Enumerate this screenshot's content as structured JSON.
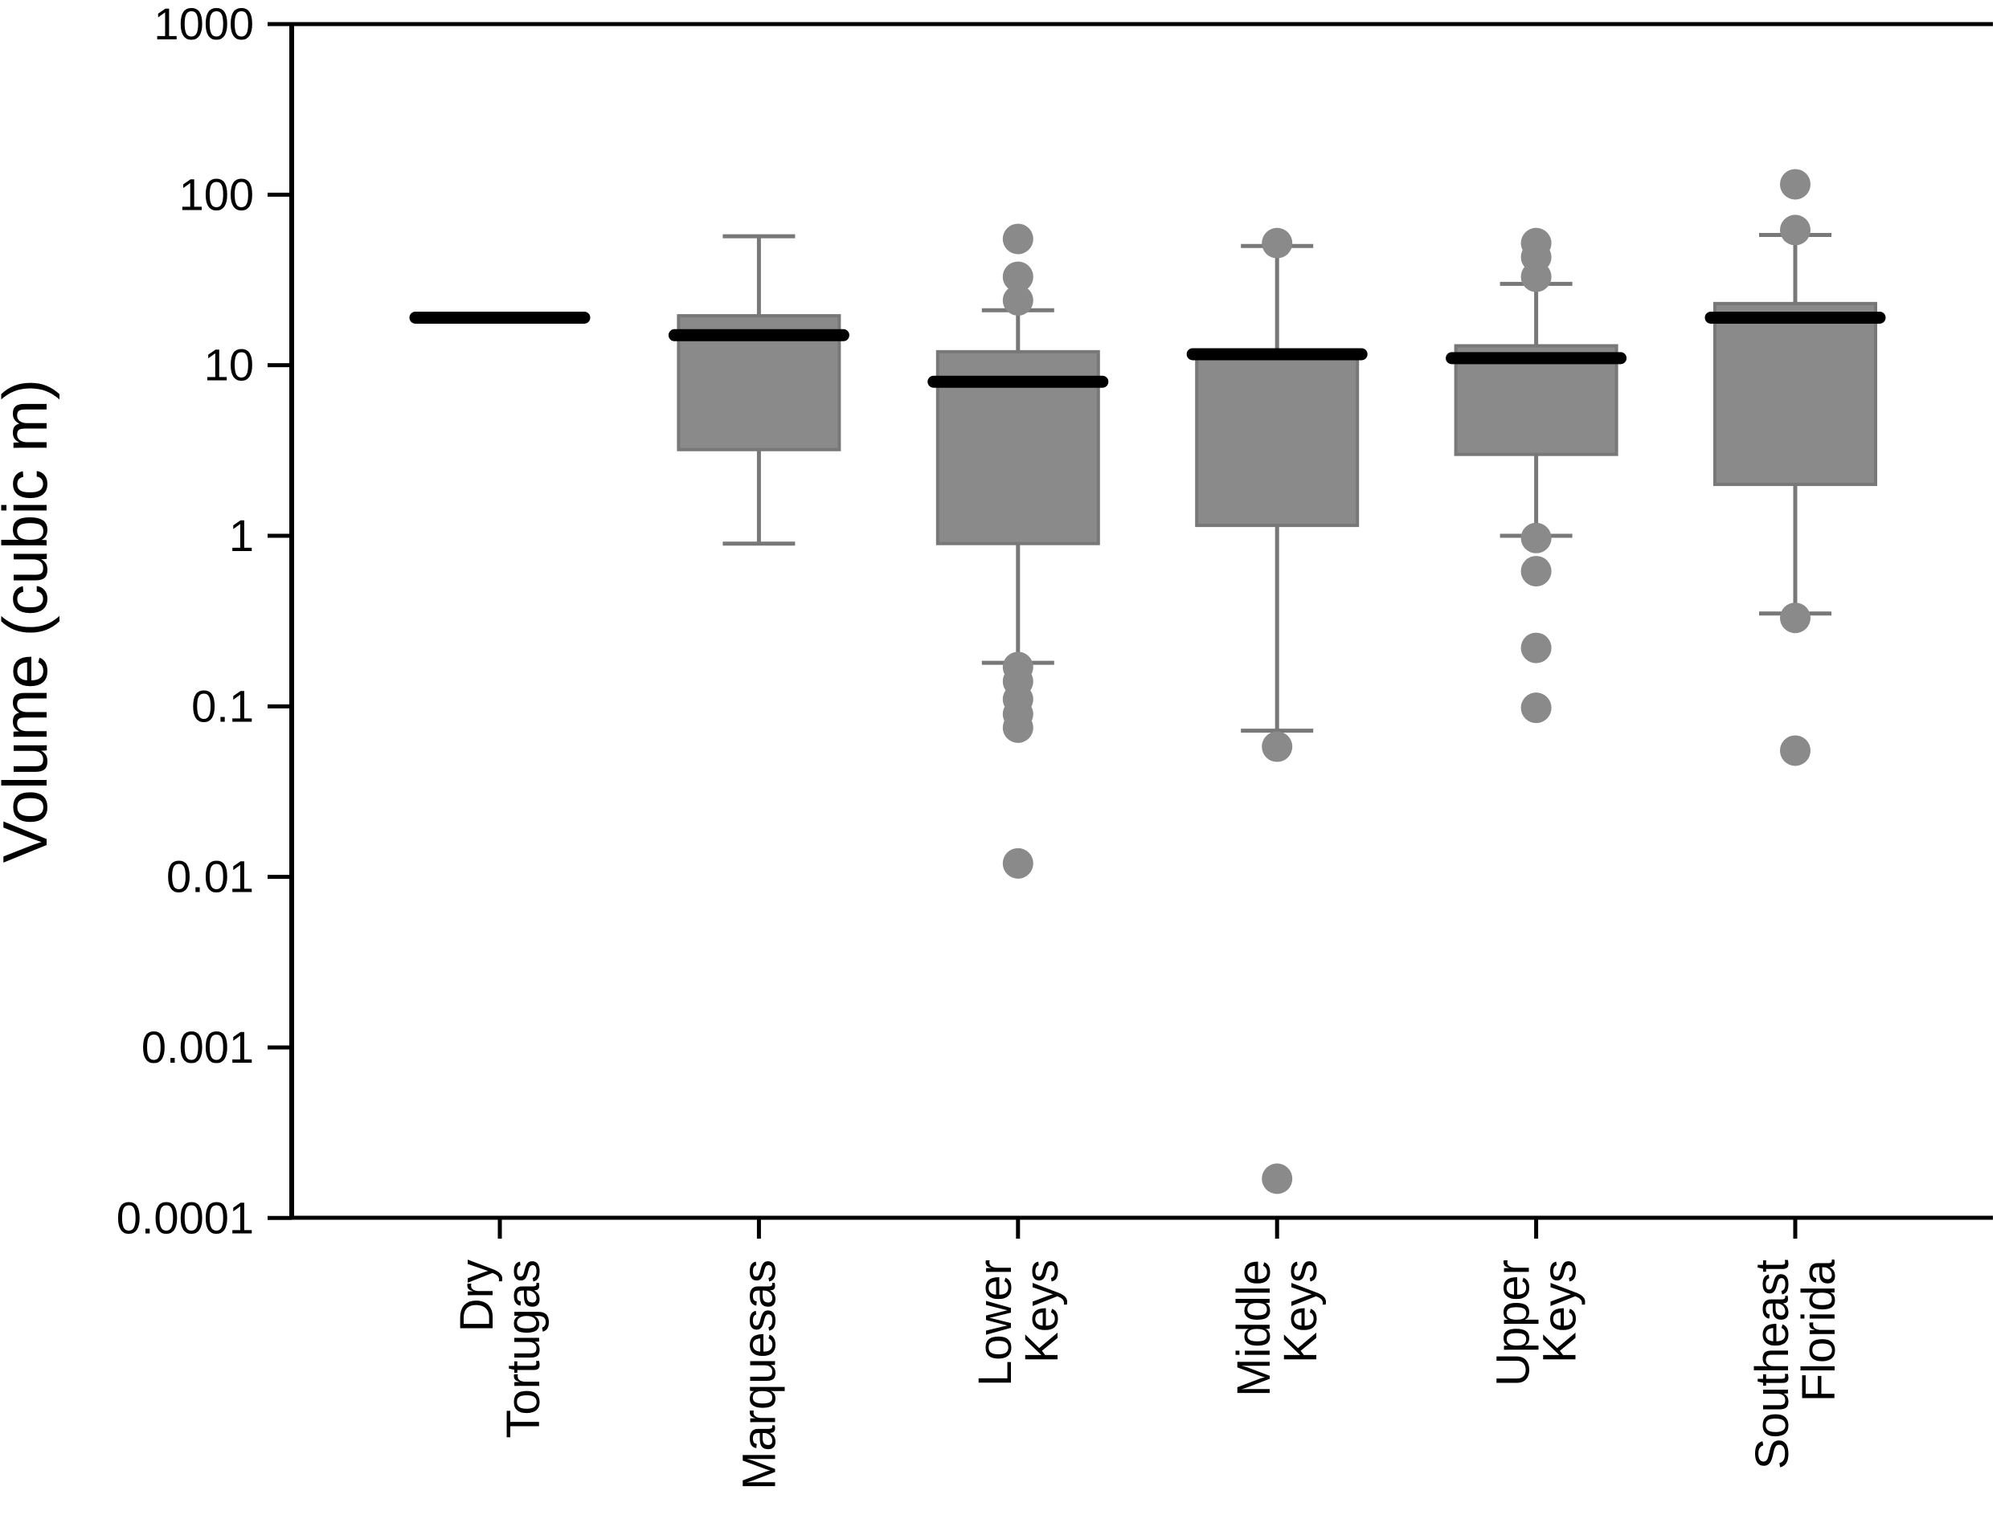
{
  "colors": {
    "background": "#ffffff",
    "axis": "#000000",
    "box_fill": "#8a8a8a",
    "box_edge": "#787878",
    "whisker": "#787878",
    "median": "#000000",
    "outlier_fill": "#8a8a8a"
  },
  "chart_data": {
    "type": "box",
    "title": "",
    "xlabel": "",
    "ylabel": "Volume (cubic m)",
    "y_scale": "log",
    "ylim": [
      0.0001,
      1000
    ],
    "grid": false,
    "legend": false,
    "y_tick_labels": [
      "1000",
      "100",
      "10",
      "1",
      "0.1",
      "0.01",
      "0.001",
      "0.0001"
    ],
    "categories": [
      "Dry Tortugas",
      "Marquesas",
      "Lower Keys",
      "Middle Keys",
      "Upper Keys",
      "Southeast Florida"
    ],
    "category_label_lines": [
      [
        "Dry",
        "Tortugas"
      ],
      [
        "Marquesas"
      ],
      [
        "Lower",
        "Keys"
      ],
      [
        "Middle",
        "Keys"
      ],
      [
        "Upper",
        "Keys"
      ],
      [
        "Southeast",
        "Florida"
      ]
    ],
    "series": [
      {
        "category": "Dry Tortugas",
        "median": 19,
        "q1": null,
        "q3": null,
        "whisker_low": null,
        "whisker_high": null,
        "outliers_high": [],
        "outliers_low": []
      },
      {
        "category": "Marquesas",
        "median": 15,
        "q1": 3.2,
        "q3": 19.5,
        "whisker_low": 0.9,
        "whisker_high": 57,
        "outliers_high": [],
        "outliers_low": []
      },
      {
        "category": "Lower Keys",
        "median": 8,
        "q1": 0.9,
        "q3": 12,
        "whisker_low": 0.18,
        "whisker_high": 21,
        "outliers_high": [
          55,
          33,
          24
        ],
        "outliers_low": [
          0.17,
          0.14,
          0.11,
          0.09,
          0.075,
          0.012
        ]
      },
      {
        "category": "Middle Keys",
        "median": 11.6,
        "q1": 1.15,
        "q3": 11.2,
        "whisker_low": 0.072,
        "whisker_high": 50,
        "outliers_high": [
          52
        ],
        "outliers_low": [
          0.058,
          0.00017
        ]
      },
      {
        "category": "Upper Keys",
        "median": 11,
        "q1": 3,
        "q3": 13,
        "whisker_low": 1.0,
        "whisker_high": 30,
        "outliers_high": [
          52,
          43,
          33
        ],
        "outliers_low": [
          0.97,
          0.62,
          0.22,
          0.098
        ]
      },
      {
        "category": "Southeast Florida",
        "median": 19,
        "q1": 2,
        "q3": 23,
        "whisker_low": 0.35,
        "whisker_high": 58,
        "outliers_high": [
          115,
          62
        ],
        "outliers_low": [
          0.33,
          0.055
        ]
      }
    ]
  }
}
